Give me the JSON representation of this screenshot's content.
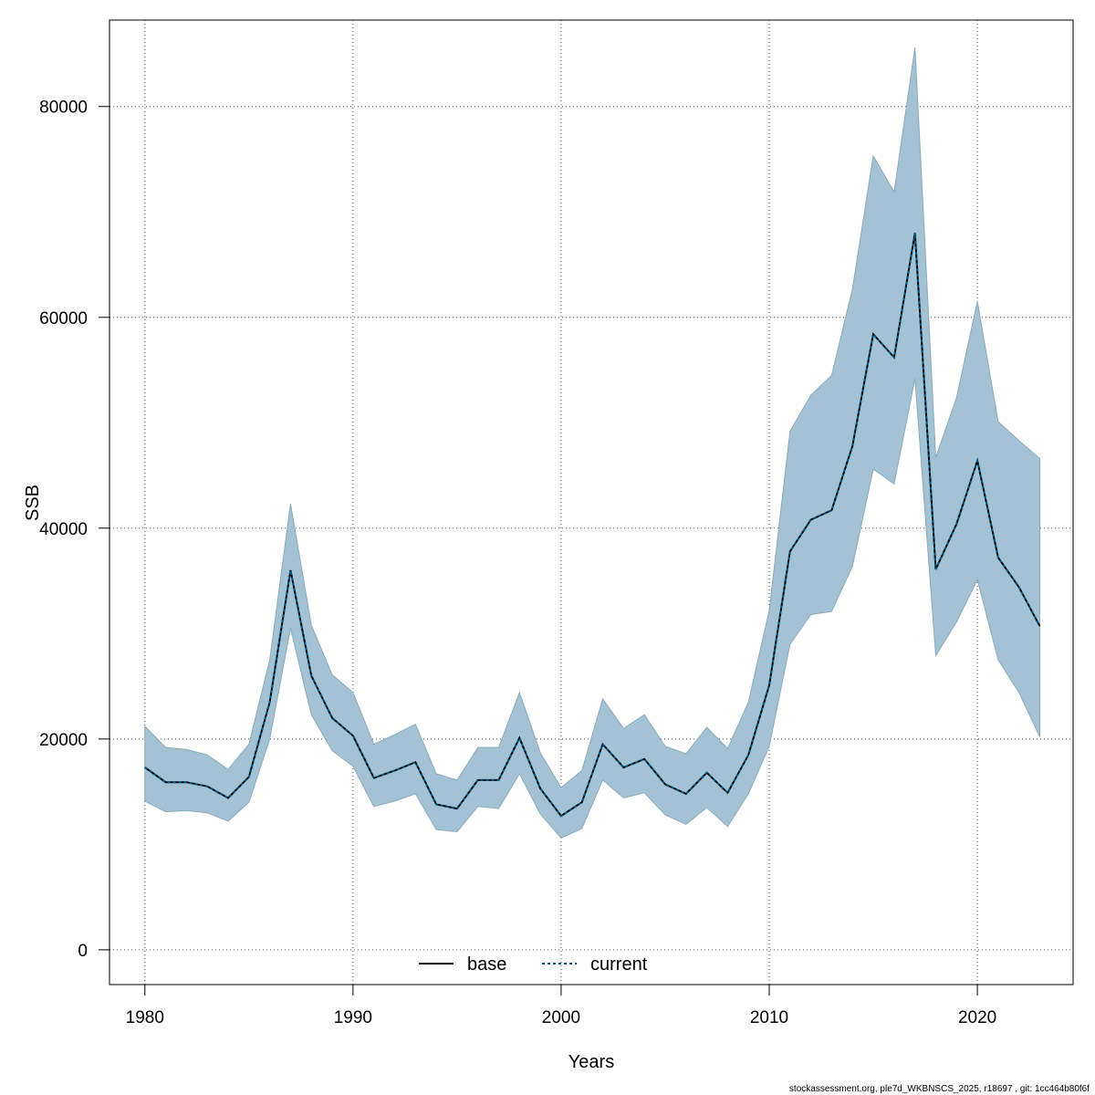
{
  "chart_data": {
    "type": "area",
    "title": "",
    "xlabel": "Years",
    "ylabel": "SSB",
    "xlim": [
      1978.3,
      2024.6
    ],
    "ylim": [
      -3300,
      88200
    ],
    "x_ticks": [
      1980,
      1990,
      2000,
      2010,
      2020
    ],
    "y_ticks": [
      0,
      20000,
      40000,
      60000,
      80000
    ],
    "x_tick_labels": [
      "1980",
      "1990",
      "2000",
      "2010",
      "2020"
    ],
    "y_tick_labels": [
      "0",
      "20000",
      "40000",
      "60000",
      "80000"
    ],
    "grid": true,
    "legend": {
      "placement": "bottom",
      "entries": [
        {
          "label": "base",
          "style": "solid",
          "color": "#000000"
        },
        {
          "label": "current",
          "style": "dotted",
          "color": "#005a8c"
        }
      ]
    },
    "band_color": "#a3c3d5",
    "x": [
      1980,
      1981,
      1982,
      1983,
      1984,
      1985,
      1986,
      1987,
      1988,
      1989,
      1990,
      1991,
      1992,
      1993,
      1994,
      1995,
      1996,
      1997,
      1998,
      1999,
      2000,
      2001,
      2002,
      2003,
      2004,
      2005,
      2006,
      2007,
      2008,
      2009,
      2010,
      2011,
      2012,
      2013,
      2014,
      2015,
      2016,
      2017,
      2018,
      2019,
      2020,
      2021,
      2022,
      2023
    ],
    "series": [
      {
        "name": "base",
        "values": [
          17300,
          15900,
          15900,
          15500,
          14400,
          16400,
          23500,
          36000,
          26000,
          22000,
          20300,
          16300,
          17000,
          17800,
          13800,
          13400,
          16100,
          16100,
          20100,
          15300,
          12700,
          14000,
          19500,
          17300,
          18100,
          15700,
          14800,
          16800,
          14900,
          18500,
          25100,
          37800,
          40800,
          41700,
          47800,
          58400,
          56200,
          68000,
          36100,
          40400,
          46400,
          37200,
          34400,
          30700
        ]
      },
      {
        "name": "current",
        "values": [
          17300,
          15900,
          15900,
          15500,
          14400,
          16400,
          23500,
          36000,
          26000,
          22000,
          20300,
          16300,
          17000,
          17800,
          13800,
          13400,
          16100,
          16100,
          20100,
          15300,
          12700,
          14000,
          19500,
          17300,
          18100,
          15700,
          14800,
          16800,
          14900,
          18500,
          25100,
          37800,
          40800,
          41700,
          47800,
          58400,
          56200,
          68000,
          36100,
          40400,
          46400,
          37200,
          34400,
          30700
        ]
      }
    ],
    "lower": [
      14100,
      13100,
      13200,
      13000,
      12200,
      14000,
      20000,
      30500,
      22300,
      18900,
      17400,
      13600,
      14100,
      14800,
      11400,
      11200,
      13600,
      13400,
      16700,
      12900,
      10600,
      11500,
      16100,
      14400,
      14900,
      12800,
      11900,
      13500,
      11700,
      14800,
      19300,
      29000,
      31800,
      32100,
      36400,
      45600,
      44200,
      54200,
      27900,
      31100,
      35100,
      27500,
      24400,
      20200
    ],
    "upper": [
      21200,
      19200,
      19000,
      18500,
      17100,
      19500,
      27500,
      42300,
      30800,
      26100,
      24400,
      19500,
      20400,
      21400,
      16700,
      16100,
      19200,
      19200,
      24400,
      18700,
      15400,
      17000,
      23800,
      21000,
      22300,
      19300,
      18600,
      21100,
      19100,
      23500,
      32200,
      49200,
      52600,
      54500,
      62700,
      75300,
      71900,
      85600,
      46700,
      52400,
      61500,
      50100,
      48300,
      46600
    ]
  },
  "footer": "stockassessment.org, ple7d_WKBNSCS_2025, r18697 , git: 1cc464b80f6f"
}
